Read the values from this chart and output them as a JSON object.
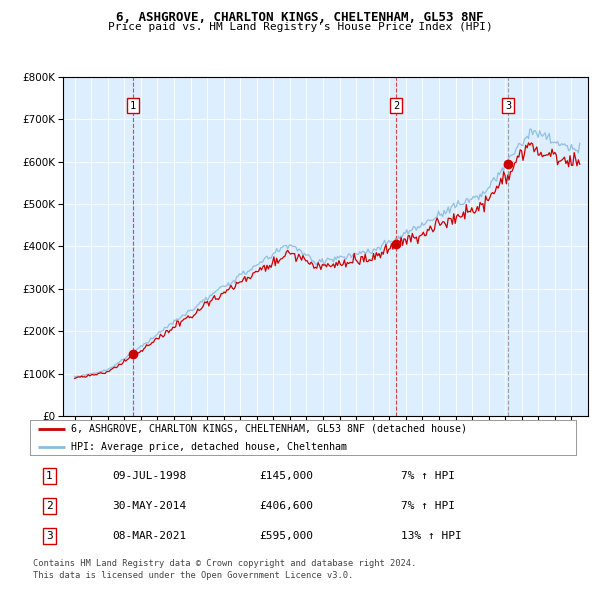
{
  "title1": "6, ASHGROVE, CHARLTON KINGS, CHELTENHAM, GL53 8NF",
  "title2": "Price paid vs. HM Land Registry's House Price Index (HPI)",
  "plot_bg": "#ddeeff",
  "sale_dates": [
    1998.52,
    2014.41,
    2021.18
  ],
  "sale_prices": [
    145000,
    406600,
    595000
  ],
  "sale_labels": [
    "1",
    "2",
    "3"
  ],
  "legend_line1": "6, ASHGROVE, CHARLTON KINGS, CHELTENHAM, GL53 8NF (detached house)",
  "legend_line2": "HPI: Average price, detached house, Cheltenham",
  "table_rows": [
    [
      "1",
      "09-JUL-1998",
      "£145,000",
      "7% ↑ HPI"
    ],
    [
      "2",
      "30-MAY-2014",
      "£406,600",
      "7% ↑ HPI"
    ],
    [
      "3",
      "08-MAR-2021",
      "£595,000",
      "13% ↑ HPI"
    ]
  ],
  "footer1": "Contains HM Land Registry data © Crown copyright and database right 2024.",
  "footer2": "This data is licensed under the Open Government Licence v3.0.",
  "red_color": "#cc0000",
  "blue_color": "#88bbdd",
  "sale3_vline_color": "#888888",
  "ylim_max": 800000,
  "xlim_min": 1994.3,
  "xlim_max": 2026.0
}
